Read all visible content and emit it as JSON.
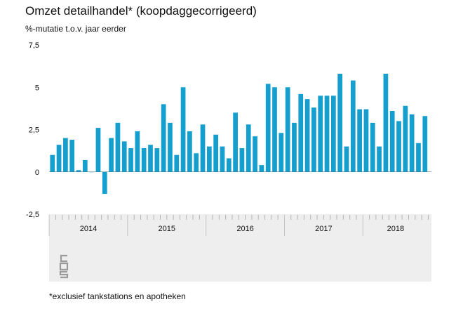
{
  "title": "Omzet detailhandel* (koopdaggecorrigeerd)",
  "subtitle": "%-mutatie t.o.v. jaar eerder",
  "footnote": "*exclusief tankstations en apotheken",
  "logo": "cbs-logo-icon",
  "colors": {
    "bar": "#149fce",
    "axis_band": "#eeeeee",
    "text": "#111111"
  },
  "chart_data": {
    "type": "bar",
    "title": "Omzet detailhandel* (koopdaggecorrigeerd)",
    "ylabel": "%-mutatie t.o.v. jaar eerder",
    "xlabel": "",
    "ylim": [
      -2.5,
      7.5
    ],
    "y_ticks": [
      "7,5",
      "5",
      "2,5",
      "0",
      "-2,5"
    ],
    "y_tick_values": [
      7.5,
      5,
      2.5,
      0,
      -2.5
    ],
    "years": [
      "2014",
      "2015",
      "2016",
      "2017",
      "2018"
    ],
    "categories": [
      "2014-01",
      "2014-02",
      "2014-03",
      "2014-04",
      "2014-05",
      "2014-06",
      "2014-07",
      "2014-08",
      "2014-09",
      "2014-10",
      "2014-11",
      "2014-12",
      "2015-01",
      "2015-02",
      "2015-03",
      "2015-04",
      "2015-05",
      "2015-06",
      "2015-07",
      "2015-08",
      "2015-09",
      "2015-10",
      "2015-11",
      "2015-12",
      "2016-01",
      "2016-02",
      "2016-03",
      "2016-04",
      "2016-05",
      "2016-06",
      "2016-07",
      "2016-08",
      "2016-09",
      "2016-10",
      "2016-11",
      "2016-12",
      "2017-01",
      "2017-02",
      "2017-03",
      "2017-04",
      "2017-05",
      "2017-06",
      "2017-07",
      "2017-08",
      "2017-09",
      "2017-10",
      "2017-11",
      "2017-12",
      "2018-01",
      "2018-02",
      "2018-03",
      "2018-04",
      "2018-05",
      "2018-06",
      "2018-07",
      "2018-08",
      "2018-09",
      "2018-10"
    ],
    "values": [
      1.0,
      1.6,
      2.0,
      1.9,
      0.1,
      0.7,
      0.0,
      2.6,
      -1.3,
      2.0,
      2.9,
      1.8,
      1.4,
      2.4,
      1.4,
      1.6,
      1.4,
      4.0,
      2.9,
      1.0,
      5.0,
      2.4,
      1.1,
      2.8,
      1.5,
      2.2,
      1.5,
      0.8,
      3.5,
      1.4,
      2.8,
      2.1,
      0.4,
      5.2,
      5.0,
      2.3,
      5.0,
      2.9,
      4.6,
      4.3,
      3.8,
      4.5,
      4.5,
      4.5,
      5.8,
      1.5,
      5.4,
      3.7,
      3.7,
      2.9,
      1.5,
      5.8,
      3.6,
      3.0,
      3.9,
      3.4,
      1.7,
      3.3
    ],
    "grid": false,
    "legend": "none"
  }
}
